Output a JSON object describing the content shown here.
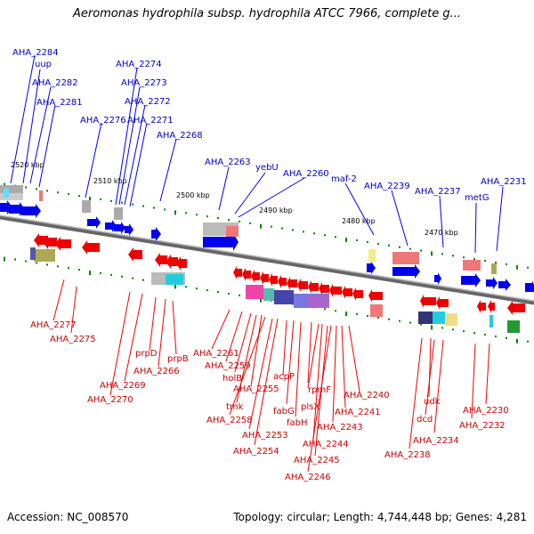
{
  "title": "Aeromonas hydrophila subsp. hydrophila ATCC 7966, complete g...",
  "footer": {
    "accession": "Accession: NC_008570",
    "summary": "Topology: circular; Length: 4,744,448 bp; Genes: 4,281"
  },
  "scale_labels": [
    "2520 kbp",
    "2510 kbp",
    "2500 kbp",
    "2490 kbp",
    "2480 kbp",
    "2470 kbp"
  ],
  "top_genes": [
    "AHA_2284",
    "uup",
    "AHA_2282",
    "AHA_2281",
    "AHA_2274",
    "AHA_2273",
    "AHA_2272",
    "AHA_2271",
    "AHA_2276",
    "AHA_2268",
    "AHA_2263",
    "yebU",
    "AHA_2260",
    "maf-2",
    "AHA_2239",
    "AHA_2237",
    "metG",
    "AHA_2231"
  ],
  "bottom_genes": [
    "AHA_2277",
    "AHA_2275",
    "prpD",
    "prpB",
    "AHA_2266",
    "AHA_2269",
    "AHA_2270",
    "AHA_2261",
    "AHA_2259",
    "holB",
    "tmk",
    "AHA_2255",
    "AHA_2258",
    "AHA_2253",
    "AHA_2254",
    "acpP",
    "fabG",
    "fabH",
    "plsX",
    "rpmF",
    "AHA_2244",
    "AHA_2245",
    "AHA_2246",
    "AHA_2243",
    "AHA_2241",
    "AHA_2240",
    "udk",
    "dcd",
    "AHA_2234",
    "AHA_2238",
    "AHA_2232",
    "AHA_2230"
  ],
  "colors": {
    "forward": "#0000ee",
    "reverse": "#ee0000",
    "backbone": "#888888",
    "tick": "#008800"
  }
}
